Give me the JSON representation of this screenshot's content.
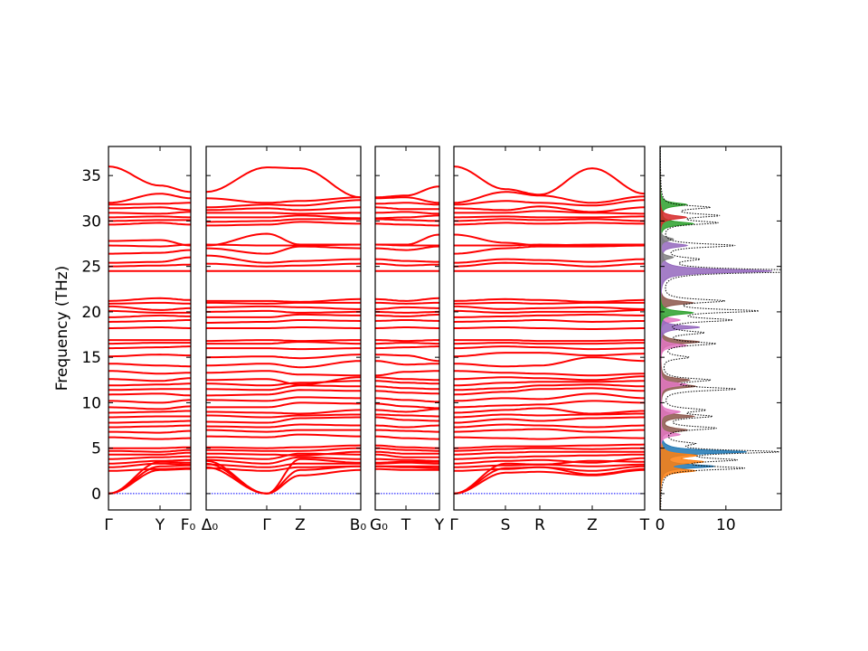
{
  "chart_data": {
    "type": "line",
    "title": "",
    "ylabel": "Frequency (THz)",
    "ylim": [
      -1.8,
      38.2
    ],
    "yticks": [
      "0",
      "5",
      "10",
      "15",
      "20",
      "25",
      "30",
      "35"
    ],
    "ytick_values": [
      0,
      5,
      10,
      15,
      20,
      25,
      30,
      35
    ],
    "band_color": "#ff0000",
    "zero_line_color": "#0000ff",
    "panels": [
      {
        "labels": [
          "Γ",
          "Y",
          "F₀"
        ],
        "point_indices": [
          0,
          1,
          2
        ]
      },
      {
        "labels": [
          "Δ₀",
          "Γ",
          "Z",
          "B₀"
        ],
        "point_indices": [
          3,
          4,
          5,
          6
        ]
      },
      {
        "labels": [
          "G₀",
          "T",
          "Y"
        ],
        "point_indices": [
          7,
          8,
          9
        ]
      },
      {
        "labels": [
          "Γ",
          "S",
          "R",
          "Z",
          "T"
        ],
        "point_indices": [
          10,
          11,
          12,
          13,
          14
        ]
      }
    ],
    "bands": [
      [
        0,
        2.6,
        2.7,
        2.9,
        0,
        2.0,
        2.6,
        2.7,
        2.6,
        2.6,
        0,
        2.3,
        2.4,
        2.0,
        2.6
      ],
      [
        0,
        3.0,
        3.1,
        3.3,
        0,
        2.6,
        3.0,
        3.0,
        3.0,
        3.0,
        0,
        2.8,
        2.9,
        2.5,
        3.0
      ],
      [
        0,
        3.5,
        3.4,
        3.6,
        0,
        3.8,
        3.4,
        3.4,
        3.5,
        3.5,
        0,
        3.3,
        3.2,
        3.6,
        3.5
      ],
      [
        2.5,
        2.7,
        2.8,
        2.8,
        2.5,
        2.9,
        3.0,
        3.0,
        2.9,
        2.8,
        2.5,
        2.7,
        2.9,
        2.1,
        2.7
      ],
      [
        2.9,
        3.3,
        3.2,
        3.2,
        2.9,
        3.3,
        3.3,
        3.3,
        3.4,
        3.3,
        2.9,
        3.1,
        3.2,
        3.0,
        3.2
      ],
      [
        3.3,
        3.6,
        3.7,
        3.7,
        3.3,
        4.0,
        3.8,
        3.8,
        3.7,
        3.6,
        3.3,
        3.6,
        3.7,
        3.4,
        3.9
      ],
      [
        3.8,
        4.0,
        4.1,
        4.0,
        3.8,
        4.4,
        4.3,
        4.3,
        4.0,
        4.0,
        3.8,
        4.0,
        4.1,
        4.2,
        4.3
      ],
      [
        4.3,
        4.3,
        4.5,
        4.4,
        4.3,
        4.2,
        4.6,
        4.6,
        4.4,
        4.4,
        4.3,
        4.5,
        4.6,
        4.6,
        4.6
      ],
      [
        4.7,
        4.6,
        4.8,
        4.8,
        4.7,
        4.7,
        5.0,
        5.0,
        4.8,
        4.7,
        4.7,
        4.9,
        5.0,
        4.9,
        5.0
      ],
      [
        5.0,
        5.0,
        5.1,
        5.1,
        5.0,
        5.1,
        5.3,
        5.3,
        5.1,
        5.0,
        5.0,
        5.2,
        5.2,
        5.3,
        5.4
      ],
      [
        6.2,
        6.0,
        6.1,
        6.3,
        6.2,
        6.5,
        6.3,
        6.3,
        6.1,
        6.0,
        6.2,
        6.1,
        6.0,
        6.2,
        6.1
      ],
      [
        6.8,
        6.7,
        6.9,
        7.0,
        6.8,
        7.0,
        7.0,
        7.0,
        6.9,
        6.8,
        6.8,
        7.0,
        7.1,
        6.8,
        7.0
      ],
      [
        7.3,
        7.4,
        7.5,
        7.4,
        7.3,
        7.6,
        7.5,
        7.5,
        7.3,
        7.5,
        7.3,
        7.6,
        7.5,
        7.3,
        7.5
      ],
      [
        7.8,
        7.9,
        8.0,
        7.9,
        7.8,
        8.3,
        8.4,
        8.4,
        8.1,
        8.0,
        7.8,
        8.2,
        8.0,
        8.3,
        8.4
      ],
      [
        8.4,
        8.5,
        8.5,
        8.6,
        8.4,
        8.6,
        8.7,
        8.7,
        8.6,
        8.5,
        8.4,
        8.7,
        8.6,
        8.7,
        8.8
      ],
      [
        8.9,
        9.0,
        9.1,
        9.0,
        8.9,
        8.8,
        9.2,
        9.2,
        9.0,
        9.3,
        8.9,
        9.2,
        9.4,
        8.8,
        9.1
      ],
      [
        9.5,
        9.3,
        9.6,
        9.5,
        9.5,
        10.0,
        9.9,
        9.9,
        9.6,
        9.4,
        9.5,
        9.7,
        9.8,
        10.2,
        10.0
      ],
      [
        10.2,
        10.0,
        10.3,
        10.3,
        10.2,
        10.6,
        10.5,
        10.5,
        10.3,
        10.1,
        10.2,
        10.5,
        10.4,
        11.0,
        10.5
      ],
      [
        10.9,
        11.0,
        10.8,
        10.8,
        10.9,
        11.4,
        11.3,
        11.3,
        11.1,
        11.0,
        10.9,
        11.2,
        11.5,
        11.6,
        11.3
      ],
      [
        11.4,
        11.5,
        11.5,
        11.5,
        11.4,
        11.9,
        11.8,
        11.8,
        11.6,
        11.5,
        11.4,
        11.6,
        11.9,
        12.0,
        11.8
      ],
      [
        11.9,
        12.0,
        12.1,
        12.1,
        11.9,
        12.2,
        12.4,
        12.4,
        12.2,
        12.1,
        11.9,
        12.2,
        12.3,
        12.3,
        12.4
      ],
      [
        12.6,
        12.4,
        12.7,
        12.5,
        12.6,
        12.0,
        12.8,
        12.8,
        12.6,
        12.5,
        12.6,
        12.8,
        12.7,
        12.5,
        12.9
      ],
      [
        13.5,
        13.2,
        13.3,
        13.3,
        13.5,
        13.1,
        13.0,
        13.0,
        13.4,
        13.5,
        13.5,
        13.3,
        13.2,
        13.0,
        13.2
      ],
      [
        14.3,
        14.1,
        14.0,
        14.1,
        14.3,
        13.9,
        14.6,
        14.6,
        14.2,
        14.3,
        14.3,
        14.0,
        14.1,
        15.0,
        14.6
      ],
      [
        15.1,
        15.3,
        15.2,
        15.0,
        15.1,
        14.9,
        15.3,
        15.3,
        15.2,
        14.6,
        15.1,
        15.5,
        15.5,
        15.2,
        15.4
      ],
      [
        16.0,
        16.1,
        16.2,
        16.0,
        16.0,
        15.9,
        16.0,
        16.0,
        16.1,
        16.2,
        16.0,
        16.2,
        16.1,
        15.9,
        16.0
      ],
      [
        16.5,
        16.6,
        16.6,
        16.5,
        16.5,
        16.7,
        16.5,
        16.5,
        16.6,
        16.5,
        16.5,
        16.6,
        16.5,
        16.5,
        16.6
      ],
      [
        16.9,
        16.9,
        16.9,
        16.8,
        16.9,
        16.8,
        16.9,
        16.9,
        16.8,
        16.9,
        16.9,
        16.9,
        16.8,
        16.8,
        16.9
      ],
      [
        18.2,
        18.3,
        18.2,
        18.2,
        18.2,
        18.3,
        18.2,
        18.2,
        18.3,
        18.2,
        18.2,
        18.3,
        18.2,
        18.1,
        18.2
      ],
      [
        18.9,
        19.0,
        19.1,
        18.8,
        18.9,
        19.1,
        19.0,
        19.0,
        19.1,
        19.0,
        18.9,
        19.0,
        19.1,
        18.9,
        19.0
      ],
      [
        19.4,
        19.6,
        19.5,
        19.4,
        19.4,
        19.7,
        19.6,
        19.6,
        19.5,
        19.7,
        19.4,
        19.5,
        19.6,
        19.7,
        19.6
      ],
      [
        20.1,
        19.9,
        19.9,
        20.0,
        20.1,
        19.9,
        20.0,
        20.0,
        19.9,
        20.0,
        20.1,
        19.9,
        20.0,
        20.0,
        20.2
      ],
      [
        20.6,
        20.2,
        20.4,
        20.5,
        20.6,
        20.5,
        20.3,
        20.3,
        20.5,
        20.4,
        20.6,
        20.3,
        20.4,
        20.5,
        20.3
      ],
      [
        20.9,
        21.0,
        20.9,
        21.0,
        20.9,
        21.0,
        21.0,
        21.0,
        20.9,
        21.0,
        20.9,
        21.0,
        20.9,
        21.0,
        21.0
      ],
      [
        21.2,
        21.5,
        21.3,
        21.2,
        21.2,
        21.1,
        21.4,
        21.4,
        21.2,
        21.5,
        21.2,
        21.4,
        21.3,
        21.1,
        21.3
      ],
      [
        24.5,
        24.5,
        24.5,
        24.5,
        24.5,
        24.5,
        24.5,
        24.5,
        24.5,
        24.5,
        24.5,
        24.5,
        24.5,
        24.5,
        24.5
      ],
      [
        25.0,
        25.1,
        25.2,
        25.3,
        25.0,
        25.1,
        25.3,
        25.3,
        25.1,
        25.2,
        25.0,
        25.4,
        25.3,
        25.0,
        25.3
      ],
      [
        25.4,
        25.5,
        26.0,
        26.2,
        25.4,
        25.6,
        25.8,
        25.8,
        25.6,
        25.5,
        25.4,
        25.8,
        25.7,
        25.5,
        25.8
      ],
      [
        26.4,
        26.5,
        26.8,
        27.0,
        26.4,
        27.2,
        27.0,
        27.0,
        26.8,
        27.2,
        26.4,
        27.0,
        27.2,
        27.2,
        27.3
      ],
      [
        27.3,
        27.2,
        27.4,
        27.4,
        27.3,
        27.3,
        27.4,
        27.4,
        27.3,
        27.3,
        27.3,
        27.3,
        27.4,
        27.3,
        27.3
      ],
      [
        27.8,
        27.9,
        27.3,
        27.3,
        28.6,
        27.4,
        27.4,
        27.4,
        27.4,
        28.5,
        28.5,
        27.6,
        27.3,
        27.4,
        27.4
      ],
      [
        29.6,
        29.8,
        29.6,
        29.5,
        29.6,
        29.9,
        29.7,
        29.7,
        29.6,
        29.5,
        29.6,
        29.8,
        29.7,
        29.8,
        29.7
      ],
      [
        30.0,
        30.1,
        30.1,
        29.9,
        30.0,
        30.2,
        30.2,
        30.2,
        30.1,
        30.0,
        30.0,
        30.2,
        30.1,
        30.2,
        30.0
      ],
      [
        30.4,
        30.5,
        30.4,
        30.4,
        30.4,
        30.6,
        30.3,
        30.3,
        30.4,
        30.6,
        30.4,
        30.5,
        30.4,
        30.4,
        30.5
      ],
      [
        30.9,
        30.8,
        31.0,
        30.9,
        30.9,
        30.8,
        30.9,
        30.9,
        31.0,
        30.8,
        30.9,
        30.9,
        31.1,
        30.9,
        30.8
      ],
      [
        31.4,
        31.5,
        31.2,
        31.2,
        31.4,
        31.2,
        31.5,
        31.5,
        31.3,
        31.3,
        31.4,
        31.2,
        31.6,
        31.0,
        31.5
      ],
      [
        31.8,
        31.9,
        32.0,
        31.5,
        31.8,
        31.7,
        32.3,
        31.9,
        32.0,
        31.8,
        31.8,
        32.2,
        32.0,
        31.7,
        32.3
      ],
      [
        32.0,
        33.0,
        32.5,
        32.5,
        32.0,
        32.2,
        32.6,
        32.5,
        32.6,
        32.0,
        32.0,
        33.2,
        32.8,
        32.0,
        32.7
      ],
      [
        36.0,
        33.9,
        33.2,
        33.2,
        35.9,
        35.8,
        32.6,
        32.6,
        32.8,
        33.8,
        36.0,
        33.5,
        32.9,
        35.8,
        33.0
      ]
    ],
    "dos": {
      "xlim": [
        0,
        18.4
      ],
      "xticks": [
        "0",
        "10"
      ],
      "xtick_values": [
        0,
        10
      ],
      "total": {
        "color": "#000000",
        "peaks": [
          [
            2.8,
            12
          ],
          [
            3.7,
            10
          ],
          [
            4.6,
            17
          ],
          [
            5.5,
            4
          ],
          [
            7.2,
            8
          ],
          [
            8.5,
            7
          ],
          [
            9.2,
            6
          ],
          [
            11.5,
            11
          ],
          [
            12.5,
            7
          ],
          [
            15,
            4
          ],
          [
            16.5,
            8
          ],
          [
            17.7,
            6
          ],
          [
            19.1,
            10
          ],
          [
            20.1,
            14
          ],
          [
            21.2,
            9
          ],
          [
            24.5,
            26
          ],
          [
            25.8,
            5
          ],
          [
            27.3,
            11
          ],
          [
            29.8,
            8
          ],
          [
            30.6,
            8
          ],
          [
            31.5,
            7
          ]
        ]
      },
      "partials": [
        {
          "color": "#1f77b4",
          "peaks": [
            [
              3.0,
              8
            ],
            [
              4.6,
              13
            ]
          ]
        },
        {
          "color": "#ff7f0e",
          "peaks": [
            [
              2.5,
              5
            ],
            [
              3.5,
              6
            ],
            [
              4.2,
              5
            ]
          ]
        },
        {
          "color": "#8c564b",
          "peaks": [
            [
              7,
              4
            ],
            [
              8.5,
              5
            ],
            [
              11.8,
              5
            ],
            [
              12.5,
              4
            ],
            [
              16.7,
              6
            ],
            [
              21,
              5
            ]
          ]
        },
        {
          "color": "#e377c2",
          "peaks": [
            [
              6.5,
              3
            ],
            [
              9,
              3
            ],
            [
              12,
              4
            ],
            [
              16.3,
              4
            ],
            [
              19.1,
              3
            ]
          ]
        },
        {
          "color": "#9467bd",
          "peaks": [
            [
              18.3,
              6
            ],
            [
              24.5,
              17
            ],
            [
              27.3,
              4
            ]
          ]
        },
        {
          "color": "#2ca02c",
          "peaks": [
            [
              19.9,
              5
            ],
            [
              29.7,
              5
            ],
            [
              31.8,
              4
            ]
          ]
        },
        {
          "color": "#d62728",
          "peaks": [
            [
              30.4,
              4
            ]
          ]
        },
        {
          "color": "#7f7f7f",
          "peaks": [
            [
              26,
              2
            ],
            [
              28,
              2
            ]
          ]
        }
      ]
    }
  }
}
